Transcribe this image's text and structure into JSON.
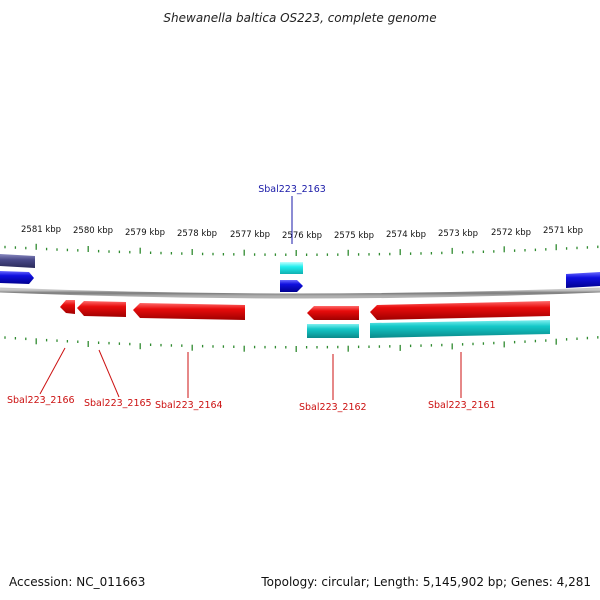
{
  "title": "Shewanella baltica OS223, complete genome",
  "footer": {
    "accession": "Accession: NC_011663",
    "summary": "Topology: circular; Length: 5,145,902 bp; Genes: 4,281"
  },
  "colors": {
    "backbone": "#808080",
    "tick": "#2f8a2f",
    "forward_gene": "#1010e0",
    "forward_gene_dark": "#4a4a8a",
    "reverse_gene": "#e80c0c",
    "cds_cyan": "#14c8c8",
    "label_red": "#cc1111",
    "label_blue": "#1a1aa8"
  },
  "ruler": {
    "labels": [
      "2581 kbp",
      "2580 kbp",
      "2579 kbp",
      "2578 kbp",
      "2577 kbp",
      "2576 kbp",
      "2575 kbp",
      "2574 kbp",
      "2573 kbp",
      "2572 kbp",
      "2571 kbp"
    ]
  },
  "gene_labels": [
    {
      "name": "Sbal223_2163",
      "strand": "forward"
    },
    {
      "name": "Sbal223_2166",
      "strand": "reverse"
    },
    {
      "name": "Sbal223_2165",
      "strand": "reverse"
    },
    {
      "name": "Sbal223_2164",
      "strand": "reverse"
    },
    {
      "name": "Sbal223_2162",
      "strand": "reverse"
    },
    {
      "name": "Sbal223_2161",
      "strand": "reverse"
    }
  ]
}
